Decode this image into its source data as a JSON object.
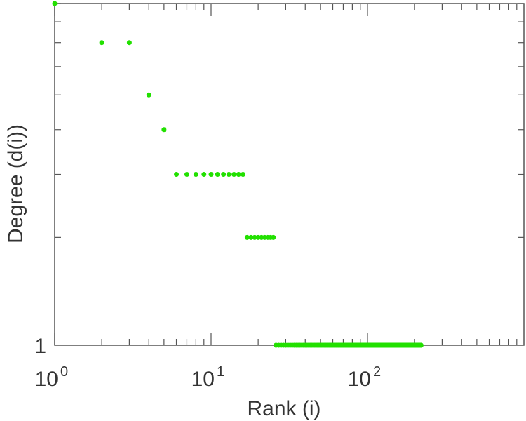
{
  "chart_data": {
    "type": "scatter",
    "xlabel": "Rank (i)",
    "ylabel": "Degree (d(i))",
    "x_scale": "log",
    "y_scale": "log",
    "xlim": [
      1,
      1000
    ],
    "ylim": [
      1,
      9
    ],
    "x_tick_labels": [
      {
        "value": 1,
        "base": "10",
        "exp": "0"
      },
      {
        "value": 10,
        "base": "10",
        "exp": "1"
      },
      {
        "value": 100,
        "base": "10",
        "exp": "2"
      }
    ],
    "y_tick_labels": [
      {
        "value": 1,
        "label": "1"
      }
    ],
    "grid": false,
    "colors": {
      "points": "#22e000",
      "axis": "#555555",
      "text": "#333333"
    },
    "series": [
      {
        "points": [
          {
            "x": 1,
            "y": 9
          },
          {
            "x": 2,
            "y": 7
          },
          {
            "x": 3,
            "y": 7
          },
          {
            "x": 4,
            "y": 5
          },
          {
            "x": 5,
            "y": 4
          },
          {
            "x": 6,
            "y": 3
          },
          {
            "x": 7,
            "y": 3
          },
          {
            "x": 8,
            "y": 3
          },
          {
            "x": 9,
            "y": 3
          },
          {
            "x": 10,
            "y": 3
          },
          {
            "x": 11,
            "y": 3
          },
          {
            "x": 12,
            "y": 3
          },
          {
            "x": 13,
            "y": 3
          },
          {
            "x": 14,
            "y": 3
          },
          {
            "x": 15,
            "y": 3
          },
          {
            "x": 16,
            "y": 3
          },
          {
            "x": 17,
            "y": 2
          },
          {
            "x": 18,
            "y": 2
          },
          {
            "x": 19,
            "y": 2
          },
          {
            "x": 20,
            "y": 2
          },
          {
            "x": 21,
            "y": 2
          },
          {
            "x": 22,
            "y": 2
          },
          {
            "x": 23,
            "y": 2
          },
          {
            "x": 24,
            "y": 2
          },
          {
            "x": 25,
            "y": 2
          }
        ],
        "constant_run": {
          "y": 1,
          "x_from": 26,
          "x_to": 220
        }
      }
    ]
  }
}
